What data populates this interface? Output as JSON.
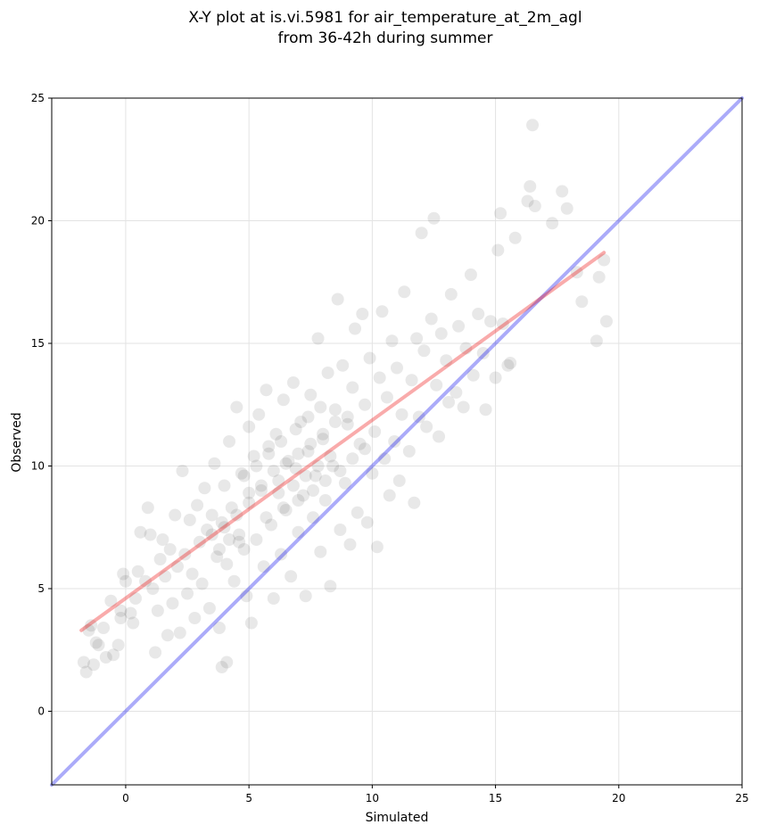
{
  "chart_data": {
    "type": "scatter",
    "title": [
      "X-Y plot at is.vi.5981 for air_temperature_at_2m_agl",
      "from 36-42h during summer"
    ],
    "xlabel": "Simulated",
    "ylabel": "Observed",
    "xlim": [
      -3,
      25
    ],
    "ylim": [
      -3,
      25
    ],
    "xticks": [
      0,
      5,
      10,
      15,
      20,
      25
    ],
    "yticks": [
      0,
      5,
      10,
      15,
      20,
      25
    ],
    "grid": true,
    "point_color": "#000000",
    "point_alpha": 0.09,
    "points": [
      [
        -1.7,
        2.0
      ],
      [
        -1.6,
        1.6
      ],
      [
        -1.5,
        3.3
      ],
      [
        -1.4,
        3.5
      ],
      [
        -1.3,
        1.9
      ],
      [
        -1.2,
        2.8
      ],
      [
        -1.1,
        2.7
      ],
      [
        -0.9,
        3.4
      ],
      [
        -0.8,
        2.2
      ],
      [
        -0.6,
        4.5
      ],
      [
        -0.5,
        2.3
      ],
      [
        -0.3,
        2.7
      ],
      [
        -0.2,
        4.1
      ],
      [
        -0.2,
        3.8
      ],
      [
        -0.1,
        5.6
      ],
      [
        0.0,
        5.3
      ],
      [
        0.2,
        4.0
      ],
      [
        0.3,
        3.6
      ],
      [
        0.4,
        4.6
      ],
      [
        0.5,
        5.7
      ],
      [
        0.6,
        7.3
      ],
      [
        0.8,
        5.3
      ],
      [
        0.9,
        8.3
      ],
      [
        1.0,
        7.2
      ],
      [
        1.1,
        5.0
      ],
      [
        1.2,
        2.4
      ],
      [
        1.3,
        4.1
      ],
      [
        1.4,
        6.2
      ],
      [
        1.5,
        7.0
      ],
      [
        1.6,
        5.5
      ],
      [
        1.7,
        3.1
      ],
      [
        1.8,
        6.6
      ],
      [
        1.9,
        4.4
      ],
      [
        2.0,
        8.0
      ],
      [
        2.1,
        5.9
      ],
      [
        2.2,
        3.2
      ],
      [
        2.3,
        9.8
      ],
      [
        2.4,
        6.4
      ],
      [
        2.5,
        4.8
      ],
      [
        2.6,
        7.8
      ],
      [
        2.7,
        5.6
      ],
      [
        2.8,
        3.8
      ],
      [
        2.9,
        8.4
      ],
      [
        3.0,
        6.9
      ],
      [
        3.1,
        5.2
      ],
      [
        3.2,
        9.1
      ],
      [
        3.3,
        7.4
      ],
      [
        3.4,
        4.2
      ],
      [
        3.5,
        8.0
      ],
      [
        3.6,
        10.1
      ],
      [
        3.7,
        6.3
      ],
      [
        3.8,
        3.4
      ],
      [
        3.9,
        7.7
      ],
      [
        3.9,
        1.8
      ],
      [
        4.0,
        9.2
      ],
      [
        4.1,
        6.0
      ],
      [
        4.1,
        2.0
      ],
      [
        4.2,
        11.0
      ],
      [
        4.3,
        8.3
      ],
      [
        4.4,
        5.3
      ],
      [
        4.5,
        12.4
      ],
      [
        4.6,
        7.2
      ],
      [
        4.7,
        9.7
      ],
      [
        4.8,
        6.6
      ],
      [
        4.9,
        4.7
      ],
      [
        5.0,
        11.6
      ],
      [
        5.0,
        8.5
      ],
      [
        5.1,
        3.6
      ],
      [
        5.2,
        10.4
      ],
      [
        5.3,
        7.0
      ],
      [
        5.4,
        12.1
      ],
      [
        5.5,
        9.0
      ],
      [
        5.6,
        5.9
      ],
      [
        5.7,
        13.1
      ],
      [
        5.8,
        10.8
      ],
      [
        5.9,
        7.6
      ],
      [
        6.0,
        4.6
      ],
      [
        6.1,
        11.3
      ],
      [
        6.2,
        9.4
      ],
      [
        6.3,
        6.4
      ],
      [
        6.4,
        12.7
      ],
      [
        6.5,
        8.2
      ],
      [
        6.6,
        10.2
      ],
      [
        6.7,
        5.5
      ],
      [
        6.8,
        13.4
      ],
      [
        6.9,
        9.9
      ],
      [
        7.0,
        7.3
      ],
      [
        7.1,
        11.8
      ],
      [
        7.2,
        8.8
      ],
      [
        7.3,
        4.7
      ],
      [
        7.4,
        10.6
      ],
      [
        7.5,
        12.9
      ],
      [
        7.6,
        7.9
      ],
      [
        7.7,
        9.6
      ],
      [
        7.8,
        15.2
      ],
      [
        7.9,
        6.5
      ],
      [
        8.0,
        11.1
      ],
      [
        8.1,
        8.6
      ],
      [
        8.2,
        13.8
      ],
      [
        8.3,
        5.1
      ],
      [
        8.4,
        10.0
      ],
      [
        8.5,
        12.3
      ],
      [
        8.6,
        16.8
      ],
      [
        8.7,
        7.4
      ],
      [
        8.8,
        14.1
      ],
      [
        8.9,
        9.3
      ],
      [
        9.0,
        11.7
      ],
      [
        9.1,
        6.8
      ],
      [
        9.2,
        13.2
      ],
      [
        9.3,
        15.6
      ],
      [
        9.4,
        8.1
      ],
      [
        9.5,
        10.9
      ],
      [
        9.6,
        16.2
      ],
      [
        9.7,
        12.5
      ],
      [
        9.8,
        7.7
      ],
      [
        9.9,
        14.4
      ],
      [
        10.0,
        9.7
      ],
      [
        10.1,
        11.4
      ],
      [
        10.2,
        6.7
      ],
      [
        10.3,
        13.6
      ],
      [
        10.4,
        16.3
      ],
      [
        10.5,
        10.3
      ],
      [
        10.6,
        12.8
      ],
      [
        10.7,
        8.8
      ],
      [
        10.8,
        15.1
      ],
      [
        10.9,
        11.0
      ],
      [
        11.0,
        14.0
      ],
      [
        11.1,
        9.4
      ],
      [
        11.2,
        12.1
      ],
      [
        11.3,
        17.1
      ],
      [
        11.5,
        10.6
      ],
      [
        11.6,
        13.5
      ],
      [
        11.7,
        8.5
      ],
      [
        11.8,
        15.2
      ],
      [
        11.9,
        12.0
      ],
      [
        12.0,
        19.5
      ],
      [
        12.1,
        14.7
      ],
      [
        12.2,
        11.6
      ],
      [
        12.4,
        16.0
      ],
      [
        12.5,
        20.1
      ],
      [
        12.6,
        13.3
      ],
      [
        12.7,
        11.2
      ],
      [
        12.8,
        15.4
      ],
      [
        13.0,
        14.3
      ],
      [
        13.1,
        12.6
      ],
      [
        13.2,
        17.0
      ],
      [
        13.4,
        13.0
      ],
      [
        13.5,
        15.7
      ],
      [
        13.7,
        12.4
      ],
      [
        13.8,
        14.8
      ],
      [
        14.0,
        17.8
      ],
      [
        14.1,
        13.7
      ],
      [
        14.3,
        16.2
      ],
      [
        14.5,
        14.6
      ],
      [
        14.6,
        12.3
      ],
      [
        14.8,
        15.9
      ],
      [
        15.0,
        13.6
      ],
      [
        15.1,
        18.8
      ],
      [
        15.2,
        20.3
      ],
      [
        15.3,
        15.8
      ],
      [
        15.5,
        14.1
      ],
      [
        15.6,
        14.2
      ],
      [
        15.8,
        19.3
      ],
      [
        16.3,
        20.8
      ],
      [
        16.4,
        21.4
      ],
      [
        16.5,
        23.9
      ],
      [
        16.6,
        20.6
      ],
      [
        17.3,
        19.9
      ],
      [
        17.7,
        21.2
      ],
      [
        17.9,
        20.5
      ],
      [
        18.3,
        17.9
      ],
      [
        18.5,
        16.7
      ],
      [
        19.1,
        15.1
      ],
      [
        19.2,
        17.7
      ],
      [
        19.4,
        18.4
      ],
      [
        19.5,
        15.9
      ],
      [
        3.5,
        7.2
      ],
      [
        4.0,
        7.5
      ],
      [
        4.5,
        8.0
      ],
      [
        5.0,
        8.9
      ],
      [
        5.5,
        9.2
      ],
      [
        6.0,
        9.8
      ],
      [
        6.5,
        10.1
      ],
      [
        7.0,
        10.5
      ],
      [
        7.5,
        10.9
      ],
      [
        8.0,
        11.3
      ],
      [
        8.5,
        11.8
      ],
      [
        9.0,
        12.0
      ],
      [
        6.2,
        8.9
      ],
      [
        6.8,
        9.2
      ],
      [
        7.3,
        9.6
      ],
      [
        7.8,
        10.0
      ],
      [
        8.3,
        10.4
      ],
      [
        5.8,
        10.5
      ],
      [
        6.3,
        11.0
      ],
      [
        6.9,
        11.5
      ],
      [
        7.4,
        12.0
      ],
      [
        7.9,
        12.4
      ],
      [
        4.8,
        9.6
      ],
      [
        5.3,
        10.0
      ],
      [
        5.7,
        7.9
      ],
      [
        6.4,
        8.3
      ],
      [
        7.0,
        8.6
      ],
      [
        7.6,
        9.0
      ],
      [
        8.1,
        9.4
      ],
      [
        8.7,
        9.8
      ],
      [
        9.2,
        10.3
      ],
      [
        9.7,
        10.7
      ],
      [
        4.2,
        7.0
      ],
      [
        3.8,
        6.6
      ],
      [
        4.6,
        6.9
      ]
    ],
    "reference_line": {
      "name": "",
      "color": "#0000ee",
      "alpha": 0.33,
      "from": [
        -3,
        -3
      ],
      "to": [
        25,
        25
      ]
    },
    "fit_line": {
      "name": "",
      "color": "#ee0000",
      "alpha": 0.33,
      "from": [
        -1.8,
        3.3
      ],
      "to": [
        19.4,
        18.7
      ]
    }
  }
}
